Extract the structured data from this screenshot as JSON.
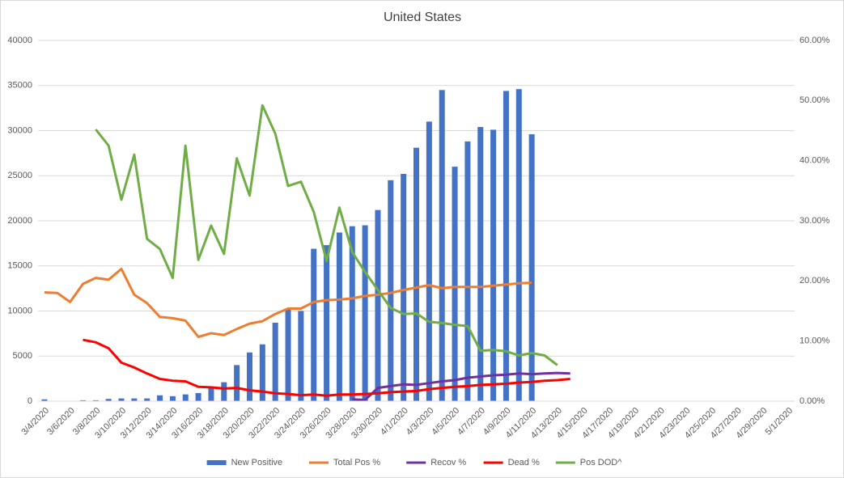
{
  "chart_data": {
    "type": "bar_line",
    "title": "United States",
    "categories": [
      "3/4/2020",
      null,
      "3/6/2020",
      null,
      "3/8/2020",
      null,
      "3/10/2020",
      null,
      "3/12/2020",
      null,
      "3/14/2020",
      null,
      "3/16/2020",
      null,
      "3/18/2020",
      null,
      "3/20/2020",
      null,
      "3/22/2020",
      null,
      "3/24/2020",
      null,
      "3/26/2020",
      null,
      "3/28/2020",
      null,
      "3/30/2020",
      null,
      "4/1/2020",
      null,
      "4/3/2020",
      null,
      "4/5/2020",
      null,
      "4/7/2020",
      null,
      "4/9/2020",
      null,
      "4/11/2020",
      null,
      "4/13/2020",
      null,
      "4/15/2020",
      null,
      "4/17/2020",
      null,
      "4/19/2020",
      null,
      "4/21/2020",
      null,
      "4/23/2020",
      null,
      "4/25/2020",
      null,
      "4/27/2020",
      null,
      "4/29/2020",
      null,
      "5/1/2020"
    ],
    "series": [
      {
        "name": "New Positive",
        "type": "bar",
        "color": "#4472c4",
        "axis": "y",
        "values": [
          200,
          null,
          null,
          100,
          100,
          250,
          300,
          300,
          300,
          650,
          550,
          750,
          900,
          1500,
          2100,
          4000,
          5400,
          6300,
          8700,
          10200,
          10000,
          16900,
          17300,
          18700,
          19400,
          19500,
          21200,
          24500,
          25200,
          28100,
          31000,
          34500,
          26000,
          28800,
          30400,
          30100,
          34400,
          34600,
          29600,
          null,
          null,
          null,
          null,
          null,
          null,
          null,
          null,
          null,
          null,
          null,
          null,
          null,
          null,
          null,
          null,
          null,
          null,
          null,
          null
        ]
      },
      {
        "name": "Total Pos %",
        "type": "line",
        "color": "#ed7d31",
        "axis": "y2",
        "values": [
          18.1,
          18.0,
          16.5,
          19.5,
          20.5,
          20.2,
          22,
          17.7,
          16.3,
          14,
          13.8,
          13.4,
          10.7,
          11.3,
          11,
          12,
          12.9,
          13.3,
          14.5,
          15.4,
          15.4,
          16.5,
          16.8,
          16.9,
          17.1,
          17.5,
          17.7,
          18,
          18.5,
          18.9,
          19.3,
          18.8,
          19,
          19,
          19,
          19.2,
          19.4,
          19.6,
          19.7,
          null,
          null,
          null,
          null,
          null,
          null,
          null,
          null,
          null,
          null,
          null,
          null,
          null,
          null,
          null,
          null,
          null,
          null,
          null,
          null
        ]
      },
      {
        "name": "Recov %",
        "type": "line",
        "color": "#7030a0",
        "axis": "y2",
        "values": [
          null,
          null,
          null,
          null,
          null,
          null,
          null,
          null,
          null,
          null,
          null,
          null,
          null,
          null,
          null,
          null,
          null,
          null,
          null,
          null,
          null,
          null,
          null,
          null,
          0.3,
          0.2,
          2.2,
          2.5,
          2.8,
          2.7,
          3.0,
          3.3,
          3.5,
          3.9,
          4.1,
          4.3,
          4.4,
          4.6,
          4.5,
          4.6,
          4.7,
          4.6,
          null,
          null,
          null,
          null,
          null,
          null,
          null,
          null,
          null,
          null,
          null,
          null,
          null,
          null,
          null,
          null,
          null
        ]
      },
      {
        "name": "Dead %",
        "type": "line",
        "color": "#ff0000",
        "axis": "y2",
        "values": [
          null,
          null,
          null,
          10.2,
          9.8,
          8.8,
          6.4,
          5.6,
          4.6,
          3.7,
          3.4,
          3.3,
          2.4,
          2.3,
          2.1,
          2.2,
          1.8,
          1.6,
          1.3,
          1.2,
          1.0,
          1.1,
          0.9,
          1.1,
          1.1,
          1.2,
          1.3,
          1.5,
          1.6,
          1.7,
          2.0,
          2.2,
          2.4,
          2.5,
          2.7,
          2.8,
          2.9,
          3.1,
          3.2,
          3.4,
          3.5,
          3.7,
          null,
          null,
          null,
          null,
          null,
          null,
          null,
          null,
          null,
          null,
          null,
          null,
          null,
          null,
          null,
          null,
          null
        ]
      },
      {
        "name": "Pos DOD^",
        "type": "line",
        "color": "#70ad47",
        "axis": "y2",
        "values": [
          null,
          null,
          null,
          null,
          45.2,
          42.5,
          33.5,
          41,
          27,
          25.3,
          20.5,
          42.5,
          23.5,
          29.2,
          24.5,
          40.4,
          34.2,
          49.2,
          44.5,
          35.8,
          36.5,
          31.5,
          23.3,
          32.2,
          24.8,
          21.5,
          18.5,
          15.5,
          14.5,
          14.6,
          13.2,
          13,
          12.7,
          12.5,
          8.4,
          8.5,
          8.3,
          7.6,
          8.0,
          7.6,
          6.0,
          null,
          null,
          null,
          null,
          null,
          null,
          null,
          null,
          null,
          null,
          null,
          null,
          null,
          null,
          null,
          null,
          null,
          null
        ]
      }
    ],
    "ylim": [
      0,
      40000
    ],
    "yticks": [
      0,
      5000,
      10000,
      15000,
      20000,
      25000,
      30000,
      35000,
      40000
    ],
    "y2lim": [
      0,
      60
    ],
    "y2ticks": [
      {
        "value": 0,
        "label": "0.00%"
      },
      {
        "value": 10,
        "label": "10.00%"
      },
      {
        "value": 20,
        "label": "20.00%"
      },
      {
        "value": 30,
        "label": "30.00%"
      },
      {
        "value": 40,
        "label": "40.00%"
      },
      {
        "value": 50,
        "label": "50.00%"
      },
      {
        "value": 60,
        "label": "60.00%"
      }
    ],
    "grid": true,
    "legend": "bottom"
  }
}
